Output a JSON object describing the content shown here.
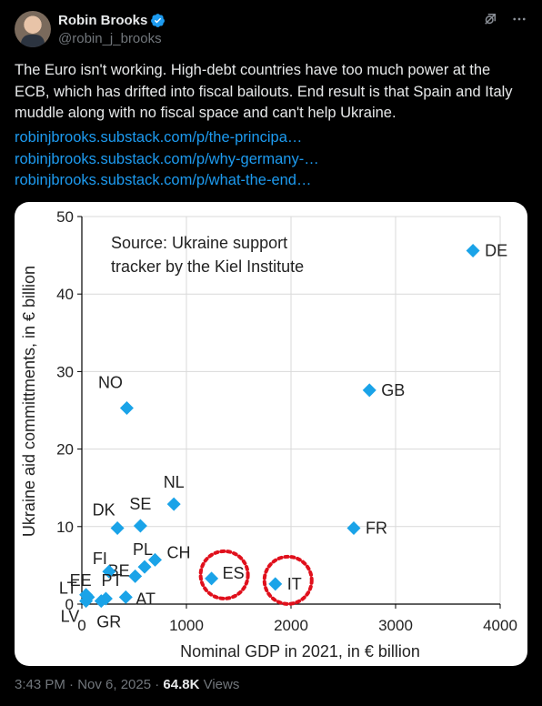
{
  "author": {
    "name": "Robin Brooks",
    "handle": "@robin_j_brooks"
  },
  "icons": {
    "verified": "verified-badge-icon",
    "grok": "grok-icon",
    "more": "more-options-icon",
    "verified_color": "#1d9bf0"
  },
  "tweet": {
    "text": "The Euro isn't working. High-debt countries have too much power at the ECB, which has drifted into fiscal bailouts. End result is that Spain and Italy muddle along with no fiscal space and can't help Ukraine.",
    "links": [
      "robinjbrooks.substack.com/p/the-principa…",
      "robinjbrooks.substack.com/p/why-germany-…",
      "robinjbrooks.substack.com/p/what-the-end…"
    ]
  },
  "footer": {
    "time": "3:43 PM · Nov 6, 2025 · ",
    "views_count": "64.8K",
    "views_label": " Views"
  },
  "chart_data": {
    "type": "scatter",
    "xlabel": "Nominal GDP in 2021, in € billion",
    "ylabel": "Ukraine aid committments, in € billion",
    "annotation": "Source: Ukraine support tracker by the Kiel Institute",
    "annotation_lines": [
      "Source: Ukraine support",
      "tracker by the Kiel Institute"
    ],
    "xlim": [
      0,
      4000
    ],
    "ylim": [
      0,
      50
    ],
    "xticks": [
      0,
      1000,
      2000,
      3000,
      4000
    ],
    "yticks": [
      0,
      10,
      20,
      30,
      40,
      50
    ],
    "marker_color": "#1aa3e8",
    "highlight_color": "#e0101c",
    "highlighted": [
      "ES",
      "IT"
    ],
    "points": [
      {
        "label": "DE",
        "x": 3740,
        "y": 45.6
      },
      {
        "label": "GB",
        "x": 2750,
        "y": 27.6
      },
      {
        "label": "FR",
        "x": 2600,
        "y": 9.8
      },
      {
        "label": "IT",
        "x": 1850,
        "y": 2.6
      },
      {
        "label": "ES",
        "x": 1240,
        "y": 3.3
      },
      {
        "label": "NO",
        "x": 430,
        "y": 25.3
      },
      {
        "label": "NL",
        "x": 880,
        "y": 12.9
      },
      {
        "label": "SE",
        "x": 560,
        "y": 10.1
      },
      {
        "label": "DK",
        "x": 340,
        "y": 9.8
      },
      {
        "label": "CH",
        "x": 700,
        "y": 5.7
      },
      {
        "label": "PL",
        "x": 600,
        "y": 4.8
      },
      {
        "label": "BE",
        "x": 510,
        "y": 3.6
      },
      {
        "label": "FI",
        "x": 260,
        "y": 4.2
      },
      {
        "label": "AT",
        "x": 420,
        "y": 0.9
      },
      {
        "label": "PT",
        "x": 230,
        "y": 0.7
      },
      {
        "label": "GR",
        "x": 185,
        "y": 0.4
      },
      {
        "label": "EE",
        "x": 40,
        "y": 1.2
      },
      {
        "label": "LT",
        "x": 60,
        "y": 0.9
      },
      {
        "label": "LV",
        "x": 40,
        "y": 0.4
      }
    ]
  }
}
